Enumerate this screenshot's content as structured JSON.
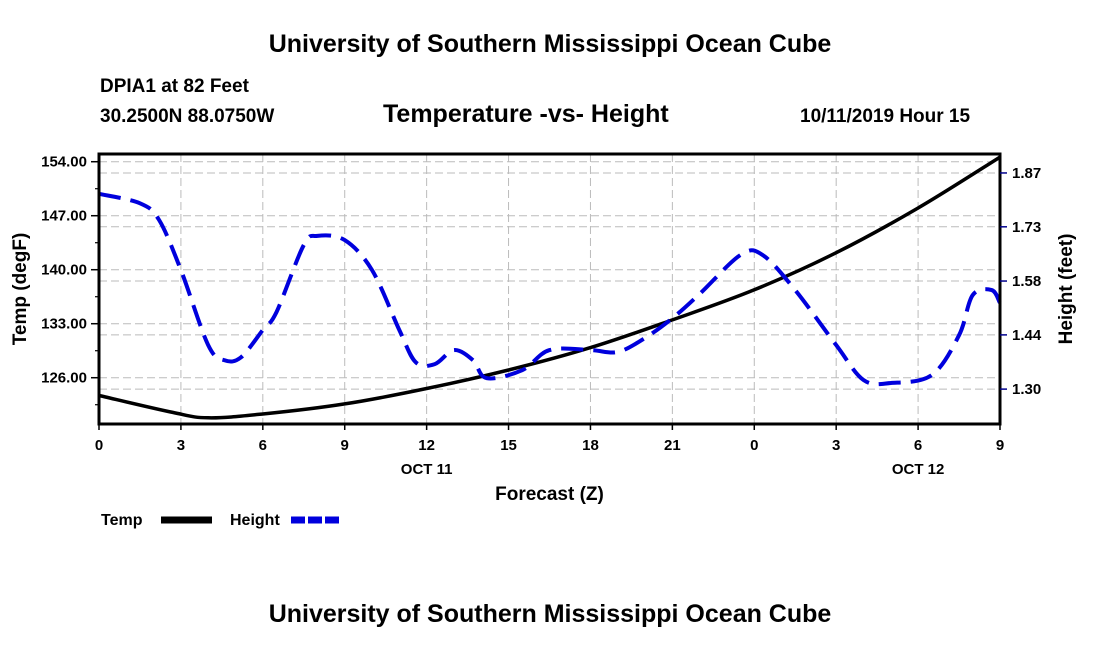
{
  "header": {
    "title": "University of Southern Mississippi Ocean Cube",
    "station": "DPIA1 at 82 Feet",
    "coords": "30.2500N 88.0750W",
    "chart_title": "Temperature -vs- Height",
    "datetime": "10/11/2019 Hour 15"
  },
  "footer": {
    "title": "University of Southern Mississippi Ocean Cube"
  },
  "colors": {
    "temp": "#000000",
    "height": "#0000dd",
    "grid": "#bbbbbb"
  },
  "chart_data": {
    "type": "line",
    "title": "Temperature -vs- Height",
    "xlabel": "Forecast (Z)",
    "ylabel": "Temp (degF)",
    "y2label": "Height (feet)",
    "grid": true,
    "legend_position": "bottom-left",
    "xlim": [
      0,
      33
    ],
    "ylim": [
      120.0,
      155.0
    ],
    "y2lim": [
      1.208,
      1.92
    ],
    "x_ticks": [
      {
        "x": 0,
        "label": "0"
      },
      {
        "x": 3,
        "label": "3"
      },
      {
        "x": 6,
        "label": "6"
      },
      {
        "x": 9,
        "label": "9"
      },
      {
        "x": 12,
        "label": "12"
      },
      {
        "x": 15,
        "label": "15"
      },
      {
        "x": 18,
        "label": "18"
      },
      {
        "x": 21,
        "label": "21"
      },
      {
        "x": 24,
        "label": "0"
      },
      {
        "x": 27,
        "label": "3"
      },
      {
        "x": 30,
        "label": "6"
      },
      {
        "x": 33,
        "label": "9"
      }
    ],
    "x_date_labels": [
      {
        "x": 12,
        "label": "OCT 11"
      },
      {
        "x": 30,
        "label": "OCT 12"
      }
    ],
    "y_ticks": [
      {
        "value": 126.0,
        "label": "126.00"
      },
      {
        "value": 133.0,
        "label": "133.00"
      },
      {
        "value": 140.0,
        "label": "140.00"
      },
      {
        "value": 147.0,
        "label": "147.00"
      },
      {
        "value": 154.0,
        "label": "154.00"
      }
    ],
    "y2_ticks": [
      {
        "value": 1.3,
        "label": "1.30"
      },
      {
        "value": 1.443,
        "label": "1.44"
      },
      {
        "value": 1.585,
        "label": "1.58"
      },
      {
        "value": 1.728,
        "label": "1.73"
      },
      {
        "value": 1.87,
        "label": "1.87"
      }
    ],
    "series": [
      {
        "name": "Temp",
        "axis": "left",
        "style": "solid",
        "x": [
          0,
          2.7,
          4,
          6,
          9,
          12,
          15,
          18,
          21,
          24,
          27,
          30,
          33
        ],
        "values": [
          123.7,
          121.5,
          120.8,
          121.3,
          122.6,
          124.6,
          127.0,
          129.9,
          133.5,
          137.4,
          142.2,
          148.0,
          154.6
        ]
      },
      {
        "name": "Height",
        "axis": "right",
        "style": "dashed",
        "x": [
          0,
          1.5,
          2.2,
          3,
          4,
          4.6,
          5.2,
          6,
          6.5,
          7.5,
          8,
          9,
          10,
          11,
          11.6,
          12.3,
          13,
          13.7,
          14.2,
          15.5,
          16.5,
          18,
          19,
          20,
          21,
          22,
          23.5,
          24.3,
          25.5,
          27,
          28,
          29,
          30.5,
          31.5,
          32,
          32.7,
          33
        ],
        "values": [
          1.815,
          1.79,
          1.746,
          1.614,
          1.416,
          1.376,
          1.384,
          1.456,
          1.503,
          1.68,
          1.704,
          1.693,
          1.614,
          1.456,
          1.371,
          1.366,
          1.403,
          1.376,
          1.329,
          1.35,
          1.403,
          1.403,
          1.398,
          1.435,
          1.487,
          1.551,
          1.654,
          1.654,
          1.561,
          1.416,
          1.324,
          1.316,
          1.337,
          1.442,
          1.548,
          1.561,
          1.527
        ]
      }
    ]
  }
}
